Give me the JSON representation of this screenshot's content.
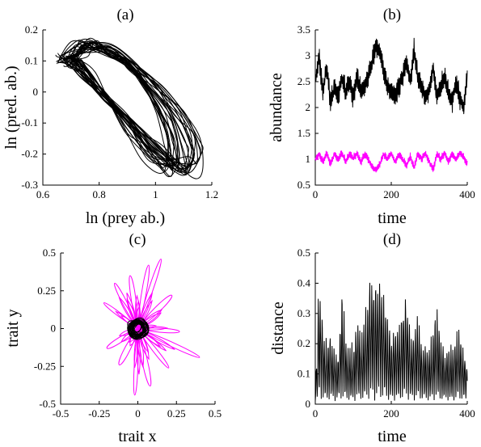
{
  "chart_data": [
    {
      "panel": "a",
      "type": "line",
      "title": "(a)",
      "xlabel": "ln (prey ab.)",
      "ylabel": "ln (pred. ab.)",
      "xlim": [
        0.6,
        1.2
      ],
      "ylim": [
        -0.3,
        0.2
      ],
      "xticks": [
        "0.6",
        "0.8",
        "1",
        "1.2"
      ],
      "yticks": [
        "-0.3",
        "-0.2",
        "-0.1",
        "0",
        "0.1",
        "0.2"
      ],
      "grid": false,
      "series": [
        {
          "color": "#000000",
          "description": "phase trajectory loops (prey vs predator log-abundance)",
          "x": [
            0.65,
            0.7,
            0.76,
            0.84,
            0.93,
            1.02,
            1.1,
            1.16,
            1.17,
            1.13,
            1.03,
            0.92,
            0.82,
            0.74,
            0.68,
            0.65
          ],
          "y": [
            0.12,
            0.16,
            0.17,
            0.15,
            0.1,
            0.02,
            -0.07,
            -0.17,
            -0.26,
            -0.28,
            -0.22,
            -0.12,
            -0.02,
            0.06,
            0.11,
            0.12
          ]
        }
      ]
    },
    {
      "panel": "b",
      "type": "line",
      "title": "(b)",
      "xlabel": "time",
      "ylabel": "abundance",
      "xlim": [
        0,
        400
      ],
      "ylim": [
        0.5,
        3.5
      ],
      "xticks": [
        "0",
        "200",
        "400"
      ],
      "yticks": [
        "0.5",
        "1",
        "1.5",
        "2",
        "2.5",
        "3",
        "3.5"
      ],
      "grid": false,
      "series": [
        {
          "color": "#000000",
          "x": [
            0,
            10,
            20,
            30,
            40,
            50,
            60,
            70,
            80,
            90,
            100,
            110,
            120,
            130,
            140,
            150,
            160,
            170,
            180,
            190,
            200,
            210,
            220,
            230,
            240,
            250,
            260,
            270,
            280,
            290,
            300,
            310,
            320,
            330,
            340,
            350,
            360,
            370,
            380,
            390,
            400
          ],
          "y": [
            2.5,
            3.0,
            2.3,
            2.8,
            2.1,
            2.4,
            2.2,
            2.6,
            2.3,
            2.5,
            2.2,
            2.6,
            2.3,
            2.4,
            2.6,
            2.9,
            3.2,
            3.1,
            2.7,
            2.4,
            2.3,
            2.2,
            2.4,
            2.6,
            2.9,
            2.5,
            3.1,
            2.6,
            2.4,
            2.2,
            2.3,
            2.8,
            2.2,
            2.4,
            2.6,
            2.3,
            2.1,
            2.5,
            2.2,
            2.0,
            2.6
          ]
        },
        {
          "color": "#ff00ff",
          "x": [
            0,
            10,
            20,
            30,
            40,
            50,
            60,
            70,
            80,
            90,
            100,
            110,
            120,
            130,
            140,
            150,
            160,
            170,
            180,
            190,
            200,
            210,
            220,
            230,
            240,
            250,
            260,
            270,
            280,
            290,
            300,
            310,
            320,
            330,
            340,
            350,
            360,
            370,
            380,
            390,
            400
          ],
          "y": [
            1.0,
            1.1,
            0.95,
            1.12,
            0.9,
            1.1,
            1.0,
            1.12,
            0.95,
            1.1,
            1.02,
            1.12,
            0.95,
            1.1,
            1.0,
            0.85,
            0.8,
            0.9,
            1.1,
            1.0,
            1.12,
            0.95,
            1.1,
            1.0,
            0.88,
            1.05,
            0.85,
            1.1,
            1.0,
            1.12,
            0.95,
            0.8,
            1.1,
            1.0,
            1.12,
            0.95,
            1.1,
            1.0,
            1.12,
            1.05,
            0.9
          ]
        }
      ]
    },
    {
      "panel": "c",
      "type": "line",
      "title": "(c)",
      "xlabel": "trait x",
      "ylabel": "trait y",
      "xlim": [
        -0.5,
        0.5
      ],
      "ylim": [
        -0.5,
        0.5
      ],
      "xticks": [
        "-0.5",
        "-0.25",
        "0",
        "0.25",
        "0.5"
      ],
      "yticks": [
        "-0.5",
        "-0.25",
        "0",
        "0.25",
        "0.5"
      ],
      "grid": false,
      "series": [
        {
          "color": "#ff00ff",
          "description": "elongated loops radiating from the origin",
          "petal_tips_x": [
            0.15,
            0.07,
            -0.05,
            -0.15,
            -0.22,
            -0.2,
            -0.12,
            -0.02,
            0.08,
            0.2,
            0.27,
            0.4,
            0.22
          ],
          "petal_tips_y": [
            0.46,
            0.42,
            0.35,
            0.3,
            0.17,
            -0.13,
            -0.24,
            -0.44,
            -0.38,
            -0.26,
            -0.02,
            -0.19,
            0.22
          ]
        },
        {
          "color": "#000000",
          "description": "tight cluster of loops near the origin",
          "center": [
            0.0,
            0.0
          ],
          "radius": 0.06
        }
      ]
    },
    {
      "panel": "d",
      "type": "line",
      "title": "(d)",
      "xlabel": "time",
      "ylabel": "distance",
      "xlim": [
        0,
        400
      ],
      "ylim": [
        0,
        0.5
      ],
      "xticks": [
        "0",
        "200",
        "400"
      ],
      "yticks": [
        "0",
        "0.1",
        "0.2",
        "0.3",
        "0.4",
        "0.5"
      ],
      "grid": false,
      "series": [
        {
          "color": "#000000",
          "x": [
            0,
            10,
            20,
            30,
            40,
            50,
            60,
            70,
            80,
            90,
            100,
            110,
            120,
            130,
            140,
            150,
            160,
            170,
            180,
            190,
            200,
            210,
            220,
            230,
            240,
            250,
            260,
            270,
            280,
            290,
            300,
            310,
            320,
            330,
            340,
            350,
            360,
            370,
            380,
            390,
            400
          ],
          "y": [
            0.05,
            0.44,
            0.3,
            0.22,
            0.28,
            0.2,
            0.18,
            0.42,
            0.25,
            0.22,
            0.2,
            0.34,
            0.26,
            0.3,
            0.42,
            0.48,
            0.45,
            0.5,
            0.43,
            0.32,
            0.24,
            0.3,
            0.28,
            0.34,
            0.42,
            0.26,
            0.28,
            0.31,
            0.25,
            0.22,
            0.2,
            0.28,
            0.35,
            0.25,
            0.2,
            0.22,
            0.19,
            0.25,
            0.3,
            0.22,
            0.14
          ]
        }
      ]
    }
  ]
}
